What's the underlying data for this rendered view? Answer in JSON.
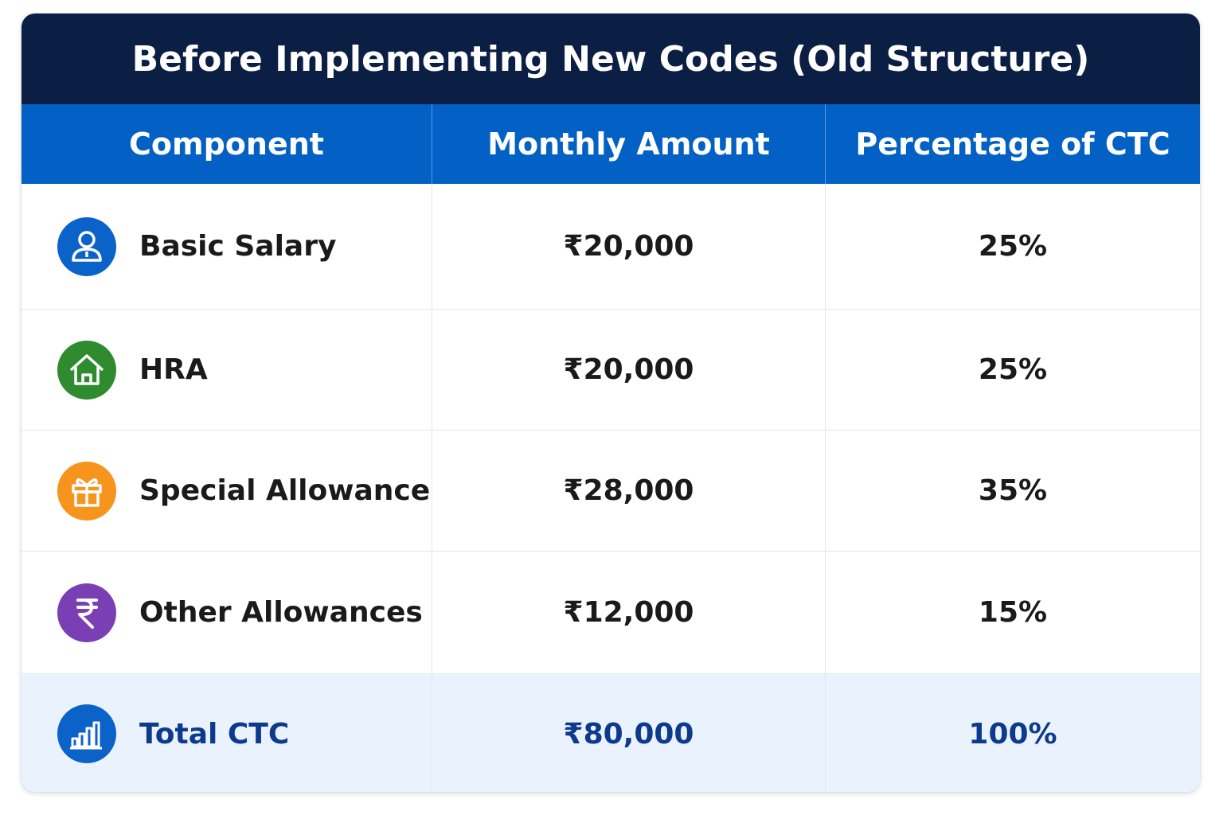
{
  "header": {
    "title": "Before Implementing New Codes (Old Structure)"
  },
  "table": {
    "headers": [
      "Component",
      "Monthly Amount",
      "Percentage of CTC"
    ],
    "rows": [
      [
        "Basic Salary",
        "₹20,000",
        "25%"
      ],
      [
        "HRA",
        "₹20,000",
        "25%"
      ],
      [
        "Special Allowance",
        "₹28,000",
        "35%"
      ],
      [
        "Other Allowances",
        "₹12,000",
        "15%"
      ]
    ],
    "total": [
      "Total CTC",
      "₹80,000",
      "100%"
    ]
  }
}
